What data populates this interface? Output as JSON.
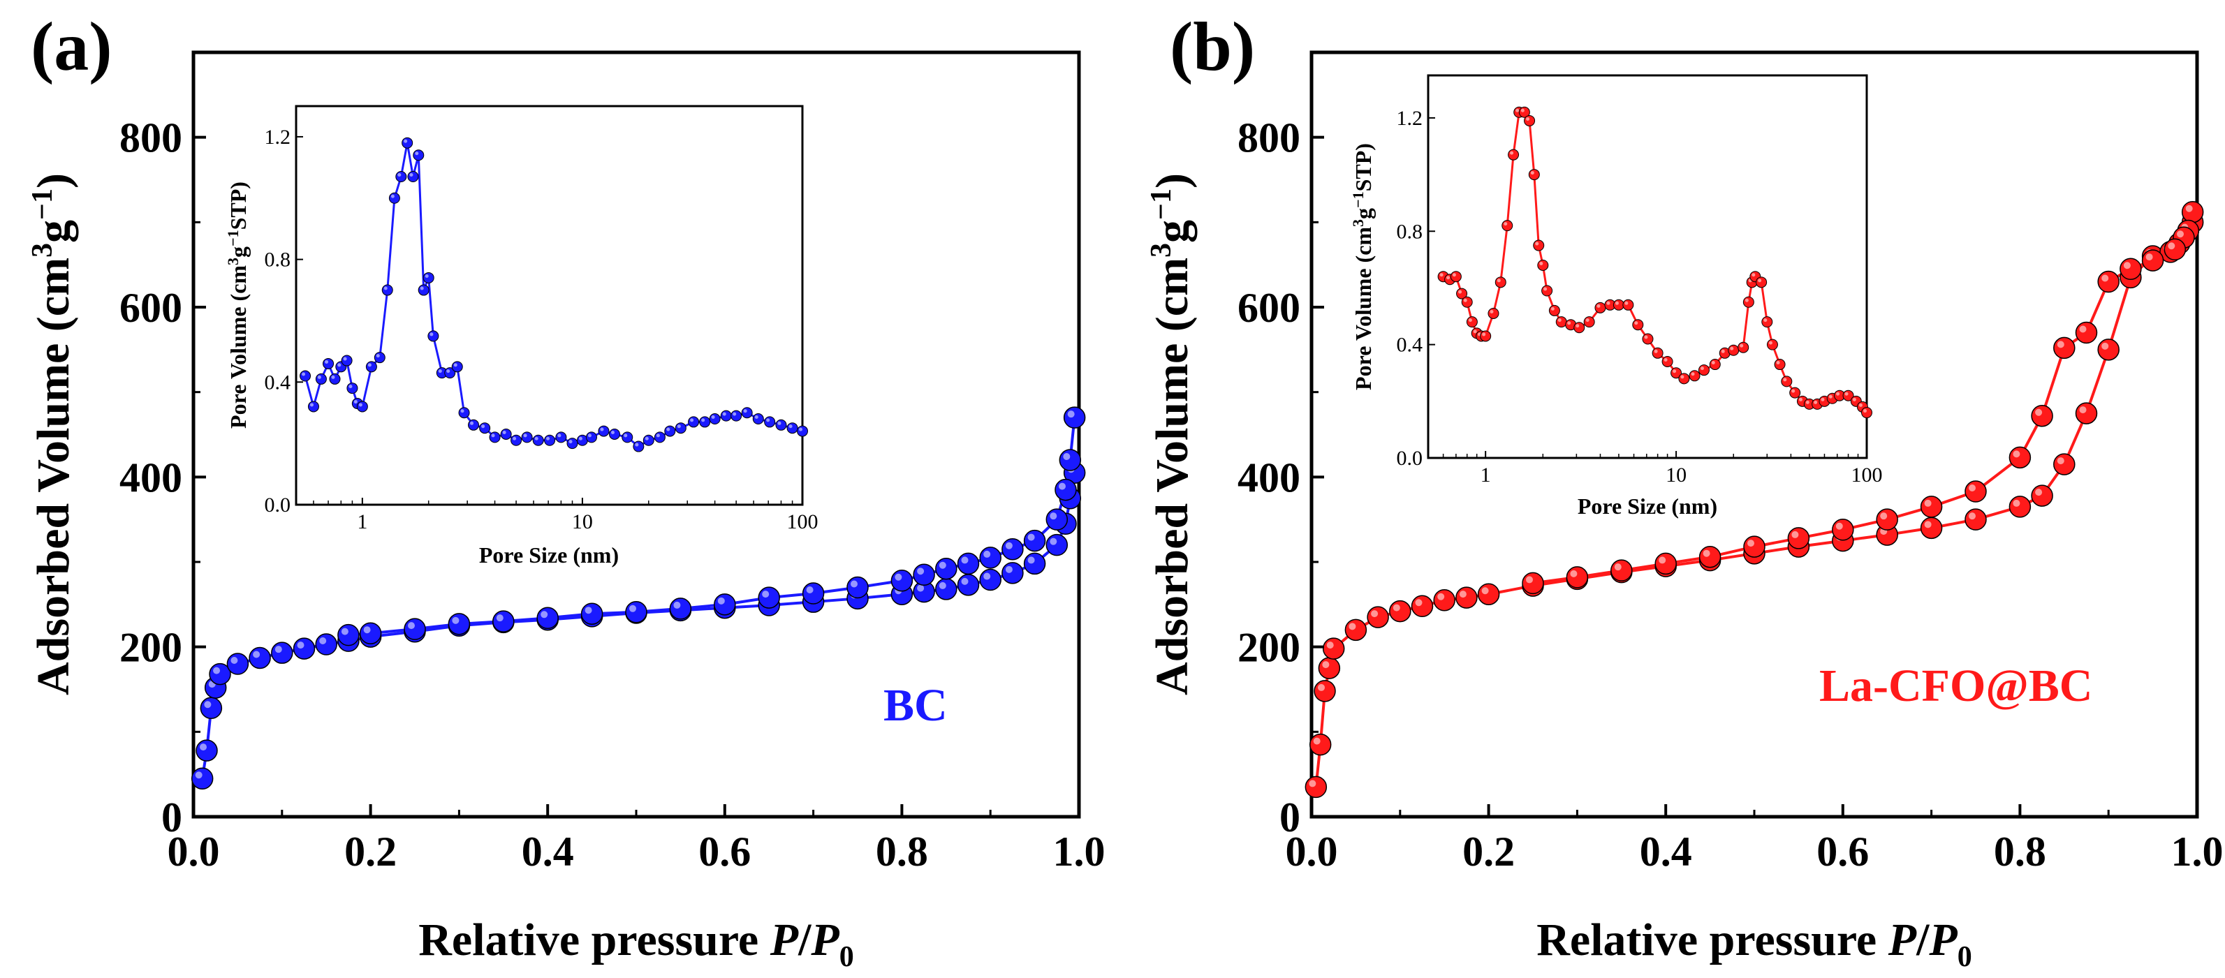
{
  "figure": {
    "panels": [
      "(a)",
      "(b)"
    ]
  },
  "chart_data": [
    {
      "panel": "(a)",
      "type": "line",
      "title": "",
      "xlabel": "Relative pressure",
      "xlabel_var": "P",
      "xlabel_sep": "/",
      "xlabel_var2": "P",
      "xlabel_sub": "0",
      "ylabel": "Adsorbed Volume (cm",
      "ylabel_sup1": "3",
      "ylabel_mid": "g",
      "ylabel_sup2": "−1",
      "ylabel_end": ")",
      "xlim": [
        0,
        1.0
      ],
      "ylim": [
        0,
        900
      ],
      "xticks": [
        "0.0",
        "0.2",
        "0.4",
        "0.6",
        "0.8",
        "1.0"
      ],
      "yticks": [
        "0",
        "200",
        "400",
        "600",
        "800"
      ],
      "color": "#1a1aff",
      "annotation": "BC",
      "series": [
        {
          "name": "adsorption",
          "x": [
            0.01,
            0.015,
            0.02,
            0.025,
            0.03,
            0.05,
            0.075,
            0.1,
            0.125,
            0.15,
            0.175,
            0.2,
            0.25,
            0.3,
            0.35,
            0.4,
            0.45,
            0.5,
            0.55,
            0.6,
            0.65,
            0.7,
            0.75,
            0.8,
            0.825,
            0.85,
            0.875,
            0.9,
            0.925,
            0.95,
            0.975,
            0.985,
            0.99,
            0.995
          ],
          "y": [
            45,
            78,
            128,
            152,
            168,
            180,
            187,
            193,
            198,
            203,
            207,
            212,
            218,
            225,
            229,
            232,
            236,
            240,
            243,
            246,
            249,
            253,
            257,
            262,
            265,
            268,
            273,
            279,
            287,
            298,
            320,
            345,
            375,
            405
          ]
        },
        {
          "name": "desorption",
          "x": [
            0.995,
            0.99,
            0.985,
            0.975,
            0.95,
            0.925,
            0.9,
            0.875,
            0.85,
            0.825,
            0.8,
            0.75,
            0.7,
            0.65,
            0.6,
            0.55,
            0.5,
            0.45,
            0.4,
            0.35,
            0.3,
            0.25,
            0.2,
            0.175
          ],
          "y": [
            470,
            420,
            385,
            350,
            325,
            315,
            305,
            298,
            292,
            285,
            278,
            270,
            263,
            258,
            250,
            245,
            241,
            239,
            234,
            230,
            227,
            221,
            216,
            214
          ]
        }
      ],
      "inset": {
        "xlabel": "Pore Size (nm)",
        "ylabel": "Pore Volume (cm",
        "ylabel_sup1": "3",
        "ylabel_mid": "g",
        "ylabel_sup2": "−1",
        "ylabel_end": "STP)",
        "xscale": "log",
        "xlim": [
          0.5,
          100
        ],
        "ylim": [
          0,
          1.3
        ],
        "xticks": [
          "1",
          "10",
          "100"
        ],
        "yticks": [
          "0.0",
          "0.4",
          "0.8",
          "1.2"
        ],
        "x": [
          0.55,
          0.6,
          0.65,
          0.7,
          0.75,
          0.8,
          0.85,
          0.9,
          0.95,
          1.0,
          1.1,
          1.2,
          1.3,
          1.4,
          1.5,
          1.6,
          1.7,
          1.8,
          1.9,
          2.0,
          2.1,
          2.3,
          2.5,
          2.7,
          2.9,
          3.2,
          3.6,
          4.0,
          4.5,
          5.0,
          5.6,
          6.3,
          7.1,
          8.0,
          9.0,
          10,
          11,
          12.5,
          14,
          16,
          18,
          20,
          22.5,
          25,
          28,
          32,
          36,
          40,
          45,
          50,
          56,
          63,
          71,
          80,
          90,
          100
        ],
        "y": [
          0.42,
          0.32,
          0.41,
          0.46,
          0.41,
          0.45,
          0.47,
          0.38,
          0.33,
          0.32,
          0.45,
          0.48,
          0.7,
          1.0,
          1.07,
          1.18,
          1.07,
          1.14,
          0.7,
          0.74,
          0.55,
          0.43,
          0.43,
          0.45,
          0.3,
          0.26,
          0.25,
          0.22,
          0.23,
          0.21,
          0.22,
          0.21,
          0.21,
          0.22,
          0.2,
          0.21,
          0.22,
          0.24,
          0.23,
          0.22,
          0.19,
          0.21,
          0.22,
          0.24,
          0.25,
          0.27,
          0.27,
          0.28,
          0.29,
          0.29,
          0.3,
          0.28,
          0.27,
          0.26,
          0.25,
          0.24
        ]
      }
    },
    {
      "panel": "(b)",
      "type": "line",
      "title": "",
      "xlabel": "Relative pressure",
      "xlabel_var": "P",
      "xlabel_sep": "/",
      "xlabel_var2": "P",
      "xlabel_sub": "0",
      "ylabel": "Adsorbed Volume (cm",
      "ylabel_sup1": "3",
      "ylabel_mid": "g",
      "ylabel_sup2": "−1",
      "ylabel_end": ")",
      "xlim": [
        0,
        1.0
      ],
      "ylim": [
        0,
        900
      ],
      "xticks": [
        "0.0",
        "0.2",
        "0.4",
        "0.6",
        "0.8",
        "1.0"
      ],
      "yticks": [
        "0",
        "200",
        "400",
        "600",
        "800"
      ],
      "color": "#ff1a1a",
      "annotation": "La-CFO@BC",
      "series": [
        {
          "name": "adsorption",
          "x": [
            0.005,
            0.01,
            0.015,
            0.02,
            0.025,
            0.05,
            0.075,
            0.1,
            0.125,
            0.15,
            0.175,
            0.2,
            0.25,
            0.3,
            0.35,
            0.4,
            0.45,
            0.5,
            0.55,
            0.6,
            0.65,
            0.7,
            0.75,
            0.8,
            0.825,
            0.85,
            0.875,
            0.9,
            0.925,
            0.95,
            0.97,
            0.98,
            0.99,
            0.995
          ],
          "y": [
            35,
            85,
            148,
            175,
            198,
            220,
            235,
            242,
            248,
            255,
            258,
            262,
            272,
            280,
            288,
            295,
            302,
            310,
            318,
            325,
            332,
            340,
            350,
            365,
            378,
            415,
            475,
            550,
            635,
            660,
            665,
            675,
            690,
            700
          ]
        },
        {
          "name": "desorption",
          "x": [
            0.995,
            0.99,
            0.985,
            0.975,
            0.95,
            0.925,
            0.9,
            0.875,
            0.85,
            0.825,
            0.8,
            0.75,
            0.7,
            0.65,
            0.6,
            0.55,
            0.5,
            0.45,
            0.4,
            0.35,
            0.3,
            0.25
          ],
          "y": [
            712,
            690,
            682,
            668,
            655,
            645,
            630,
            570,
            552,
            472,
            423,
            383,
            365,
            350,
            338,
            328,
            318,
            306,
            298,
            290,
            282,
            275
          ]
        }
      ],
      "inset": {
        "xlabel": "Pore Size (nm)",
        "ylabel": "Pore Volume (cm",
        "ylabel_sup1": "3",
        "ylabel_mid": "g",
        "ylabel_sup2": "−1",
        "ylabel_end": "STP)",
        "xscale": "log",
        "xlim": [
          0.5,
          100
        ],
        "ylim": [
          0,
          1.35
        ],
        "xticks": [
          "1",
          "10",
          "100"
        ],
        "yticks": [
          "0.0",
          "0.4",
          "0.8",
          "1.2"
        ],
        "x": [
          0.6,
          0.65,
          0.7,
          0.75,
          0.8,
          0.85,
          0.9,
          0.95,
          1.0,
          1.1,
          1.2,
          1.3,
          1.4,
          1.5,
          1.6,
          1.7,
          1.8,
          1.9,
          2.0,
          2.1,
          2.3,
          2.5,
          2.8,
          3.1,
          3.5,
          4.0,
          4.5,
          5.0,
          5.6,
          6.3,
          7.1,
          8.0,
          9.0,
          10,
          11,
          12.5,
          14,
          16,
          18,
          20,
          22.5,
          24,
          25,
          26,
          28,
          30,
          32,
          35,
          38,
          42,
          46,
          50,
          55,
          60,
          66,
          72,
          80,
          88,
          95,
          100
        ],
        "y": [
          0.64,
          0.63,
          0.64,
          0.58,
          0.55,
          0.48,
          0.44,
          0.43,
          0.43,
          0.51,
          0.62,
          0.82,
          1.07,
          1.22,
          1.22,
          1.19,
          1.0,
          0.75,
          0.68,
          0.59,
          0.52,
          0.48,
          0.47,
          0.46,
          0.48,
          0.53,
          0.54,
          0.54,
          0.54,
          0.47,
          0.42,
          0.37,
          0.34,
          0.3,
          0.28,
          0.29,
          0.31,
          0.33,
          0.37,
          0.38,
          0.39,
          0.55,
          0.62,
          0.64,
          0.62,
          0.48,
          0.4,
          0.33,
          0.27,
          0.23,
          0.2,
          0.19,
          0.19,
          0.2,
          0.21,
          0.22,
          0.22,
          0.2,
          0.18,
          0.16
        ]
      }
    }
  ]
}
